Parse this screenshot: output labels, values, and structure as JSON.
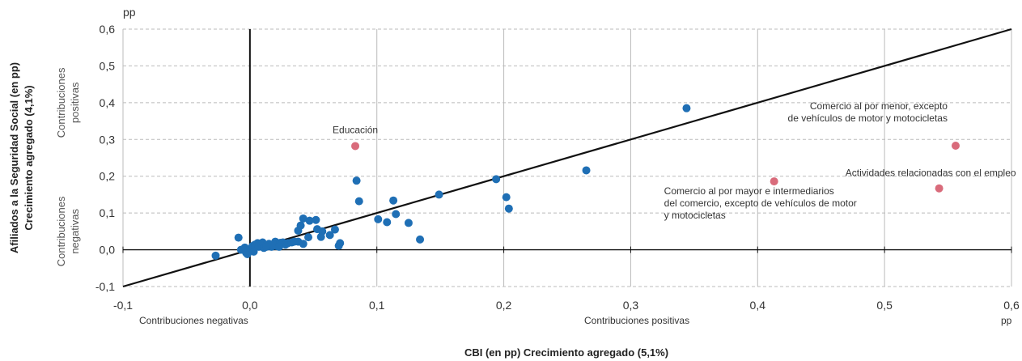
{
  "chart_data": {
    "type": "scatter",
    "xlim": [
      -0.1,
      0.6
    ],
    "ylim": [
      -0.1,
      0.6
    ],
    "x_ticks": [
      "-0,1",
      "0,0",
      "0,1",
      "0,2",
      "0,3",
      "0,4",
      "0,5",
      "0,6"
    ],
    "y_ticks": [
      "-0,1",
      "0,0",
      "0,1",
      "0,2",
      "0,3",
      "0,4",
      "0,5",
      "0,6"
    ],
    "x_unit": "pp",
    "y_unit": "pp",
    "xlabel": "CBI (en pp) Crecimiento agregado (5,1%)",
    "ylabel_line1": "Afiliados a la Seguridad Social (en pp)",
    "ylabel_line2": "Crecimiento agregado (4,1%)",
    "x_side_labels": {
      "negative": "Contribuciones negativas",
      "positive": "Contribuciones positivas"
    },
    "y_side_labels": {
      "positive": [
        "Contribuciones",
        "positivas"
      ],
      "negative": [
        "Contribuciones",
        "negativas"
      ]
    },
    "grid": true,
    "reference_line": {
      "from": [
        -0.1,
        -0.1
      ],
      "to": [
        0.6,
        0.6
      ],
      "color": "#111111"
    },
    "colors": {
      "main": "#1f6fb5",
      "highlight": "#d96b7b",
      "grid": "#bbbbbb"
    },
    "highlighted": [
      {
        "x": 0.083,
        "y": 0.282,
        "label": [
          "Educación"
        ]
      },
      {
        "x": 0.556,
        "y": 0.283,
        "label": [
          "Comercio al por menor, excepto",
          "de vehículos de motor y motocicletas"
        ]
      },
      {
        "x": 0.413,
        "y": 0.186,
        "label": [
          "Comercio al por mayor e intermediarios",
          "del comercio, excepto de vehículos de motor",
          "y motocicletas"
        ]
      },
      {
        "x": 0.543,
        "y": 0.167,
        "label": [
          "Actividades relacionadas con el empleo"
        ]
      }
    ],
    "points": [
      [
        0.344,
        0.385
      ],
      [
        0.265,
        0.216
      ],
      [
        0.194,
        0.192
      ],
      [
        0.202,
        0.143
      ],
      [
        0.204,
        0.112
      ],
      [
        0.149,
        0.15
      ],
      [
        0.084,
        0.188
      ],
      [
        0.086,
        0.132
      ],
      [
        0.113,
        0.134
      ],
      [
        0.115,
        0.097
      ],
      [
        0.101,
        0.083
      ],
      [
        0.108,
        0.075
      ],
      [
        0.125,
        0.073
      ],
      [
        0.134,
        0.028
      ],
      [
        0.042,
        0.085
      ],
      [
        0.047,
        0.079
      ],
      [
        0.052,
        0.081
      ],
      [
        0.04,
        0.066
      ],
      [
        0.038,
        0.052
      ],
      [
        0.053,
        0.056
      ],
      [
        0.057,
        0.05
      ],
      [
        0.067,
        0.055
      ],
      [
        0.056,
        0.035
      ],
      [
        0.063,
        0.04
      ],
      [
        0.046,
        0.034
      ],
      [
        0.038,
        0.022
      ],
      [
        0.042,
        0.016
      ],
      [
        0.071,
        0.018
      ],
      [
        0.07,
        0.011
      ],
      [
        -0.027,
        -0.016
      ],
      [
        -0.009,
        0.033
      ],
      [
        -0.007,
        0.0
      ],
      [
        -0.003,
        -0.008
      ],
      [
        -0.002,
        -0.012
      ],
      [
        0.001,
        0.004
      ],
      [
        0.002,
        0.01
      ],
      [
        0.004,
        0.014
      ],
      [
        0.006,
        0.018
      ],
      [
        0.007,
        0.008
      ],
      [
        0.009,
        0.016
      ],
      [
        0.01,
        0.02
      ],
      [
        0.011,
        0.005
      ],
      [
        0.013,
        0.012
      ],
      [
        0.015,
        0.016
      ],
      [
        0.017,
        0.008
      ],
      [
        0.02,
        0.022
      ],
      [
        0.021,
        0.01
      ],
      [
        0.022,
        0.016
      ],
      [
        0.024,
        0.019
      ],
      [
        0.026,
        0.02
      ],
      [
        0.028,
        0.014
      ],
      [
        0.03,
        0.018
      ],
      [
        0.033,
        0.02
      ],
      [
        0.035,
        0.022
      ],
      [
        0.013,
        0.008
      ],
      [
        0.018,
        0.014
      ],
      [
        0.023,
        0.008
      ],
      [
        -0.004,
        0.006
      ],
      [
        0.003,
        -0.005
      ]
    ]
  }
}
